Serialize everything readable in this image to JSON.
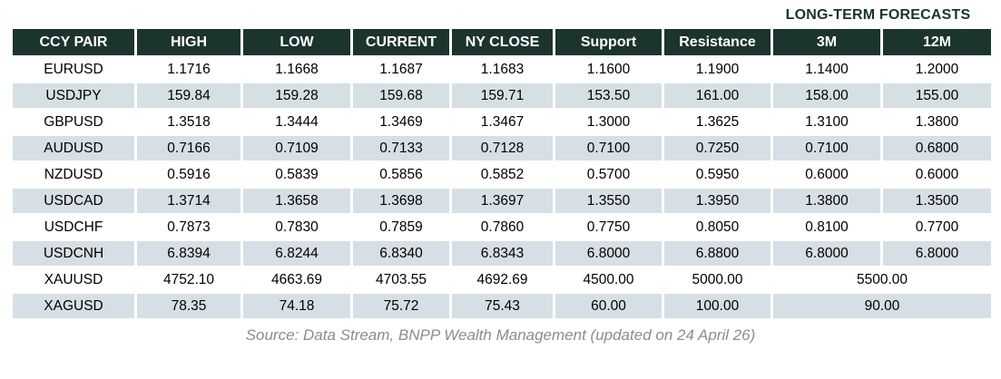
{
  "banner": {
    "label": "LONG-TERM FORECASTS"
  },
  "table": {
    "headers": [
      "CCY PAIR",
      "HIGH",
      "LOW",
      "CURRENT",
      "NY CLOSE",
      "Support",
      "Resistance",
      "3M",
      "12M"
    ],
    "rows": [
      {
        "pair": "EURUSD",
        "values": [
          "1.1716",
          "1.1668",
          "1.1687",
          "1.1683",
          "1.1600",
          "1.1900",
          "1.1400",
          "1.2000"
        ]
      },
      {
        "pair": "USDJPY",
        "values": [
          "159.84",
          "159.28",
          "159.68",
          "159.71",
          "153.50",
          "161.00",
          "158.00",
          "155.00"
        ]
      },
      {
        "pair": "GBPUSD",
        "values": [
          "1.3518",
          "1.3444",
          "1.3469",
          "1.3467",
          "1.3000",
          "1.3625",
          "1.3100",
          "1.3800"
        ]
      },
      {
        "pair": "AUDUSD",
        "values": [
          "0.7166",
          "0.7109",
          "0.7133",
          "0.7128",
          "0.7100",
          "0.7250",
          "0.7100",
          "0.6800"
        ]
      },
      {
        "pair": "NZDUSD",
        "values": [
          "0.5916",
          "0.5839",
          "0.5856",
          "0.5852",
          "0.5700",
          "0.5950",
          "0.6000",
          "0.6000"
        ]
      },
      {
        "pair": "USDCAD",
        "values": [
          "1.3714",
          "1.3658",
          "1.3698",
          "1.3697",
          "1.3550",
          "1.3950",
          "1.3800",
          "1.3500"
        ]
      },
      {
        "pair": "USDCHF",
        "values": [
          "0.7873",
          "0.7830",
          "0.7859",
          "0.7860",
          "0.7750",
          "0.8050",
          "0.8100",
          "0.7700"
        ]
      },
      {
        "pair": "USDCNH",
        "values": [
          "6.8394",
          "6.8244",
          "6.8340",
          "6.8343",
          "6.8000",
          "6.8800",
          "6.8000",
          "6.8000"
        ]
      },
      {
        "pair": "XAUUSD",
        "values": [
          "4752.10",
          "4663.69",
          "4703.55",
          "4692.69",
          "4500.00",
          "5000.00"
        ],
        "forecast_merged": "5500.00"
      },
      {
        "pair": "XAGUSD",
        "values": [
          "78.35",
          "74.18",
          "75.72",
          "75.43",
          "60.00",
          "100.00"
        ],
        "forecast_merged": "90.00"
      }
    ]
  },
  "footer": {
    "source": "Source: Data Stream, BNPP Wealth Management (updated on 24 April 26)"
  },
  "colors": {
    "header_bg": "#1c342e",
    "header_text": "#ffffff",
    "stripe_bg": "#d6dfe4",
    "banner_text": "#1a332d",
    "source_text": "#8c8c8c"
  },
  "chart_data": {
    "type": "table",
    "title": "LONG-TERM FORECASTS",
    "columns": [
      "CCY PAIR",
      "HIGH",
      "LOW",
      "CURRENT",
      "NY CLOSE",
      "Support",
      "Resistance",
      "3M",
      "12M"
    ],
    "rows": [
      [
        "EURUSD",
        1.1716,
        1.1668,
        1.1687,
        1.1683,
        1.16,
        1.19,
        1.14,
        1.2
      ],
      [
        "USDJPY",
        159.84,
        159.28,
        159.68,
        159.71,
        153.5,
        161.0,
        158.0,
        155.0
      ],
      [
        "GBPUSD",
        1.3518,
        1.3444,
        1.3469,
        1.3467,
        1.3,
        1.3625,
        1.31,
        1.38
      ],
      [
        "AUDUSD",
        0.7166,
        0.7109,
        0.7133,
        0.7128,
        0.71,
        0.725,
        0.71,
        0.68
      ],
      [
        "NZDUSD",
        0.5916,
        0.5839,
        0.5856,
        0.5852,
        0.57,
        0.595,
        0.6,
        0.6
      ],
      [
        "USDCAD",
        1.3714,
        1.3658,
        1.3698,
        1.3697,
        1.355,
        1.395,
        1.38,
        1.35
      ],
      [
        "USDCHF",
        0.7873,
        0.783,
        0.7859,
        0.786,
        0.775,
        0.805,
        0.81,
        0.77
      ],
      [
        "USDCNH",
        6.8394,
        6.8244,
        6.834,
        6.8343,
        6.8,
        6.88,
        6.8,
        6.8
      ],
      [
        "XAUUSD",
        4752.1,
        4663.69,
        4703.55,
        4692.69,
        4500.0,
        5000.0,
        5500.0,
        5500.0
      ],
      [
        "XAGUSD",
        78.35,
        74.18,
        75.72,
        75.43,
        60.0,
        100.0,
        90.0,
        90.0
      ]
    ],
    "notes": "3M and 12M cells are merged for XAUUSD (5500.00) and XAGUSD (90.00); source line: Source: Data Stream, BNPP Wealth Management (updated on 24 April 26)"
  }
}
